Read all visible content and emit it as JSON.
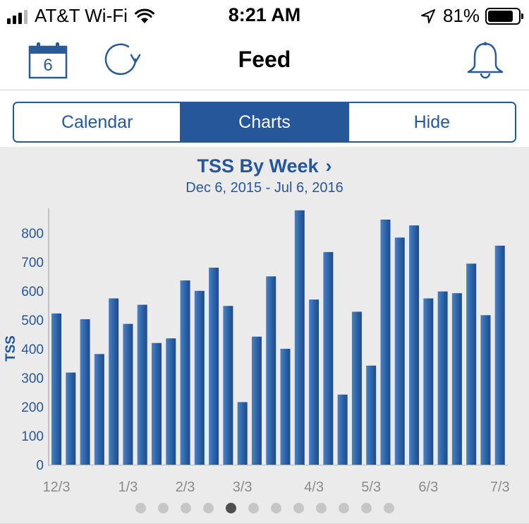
{
  "status_bar": {
    "carrier": "AT&T Wi-Fi",
    "time": "8:21 AM",
    "battery_percent": "81%",
    "battery_level": 0.81,
    "signal_bars": 4,
    "signal_bars_filled": 3
  },
  "nav": {
    "title": "Feed",
    "calendar_day": "6",
    "icons": [
      "calendar-icon",
      "refresh-icon",
      "bell-icon"
    ]
  },
  "segments": [
    {
      "label": "Calendar",
      "active": false
    },
    {
      "label": "Charts",
      "active": true
    },
    {
      "label": "Hide",
      "active": false
    }
  ],
  "chart_card": {
    "title": "TSS By Week",
    "title_arrow": "›",
    "subtitle": "Dec 6, 2015 - Jul 6, 2016"
  },
  "pager": {
    "count": 12,
    "active_index": 4
  },
  "colors": {
    "accent": "#26579a",
    "bar": "#2e64a8",
    "panel_bg": "#ebebeb"
  },
  "chart_data": {
    "type": "bar",
    "title": "TSS By Week",
    "subtitle": "Dec 6, 2015 - Jul 6, 2016",
    "ylabel": "TSS",
    "xlabel": "",
    "ylim": [
      0,
      880
    ],
    "yticks": [
      0,
      100,
      200,
      300,
      400,
      500,
      600,
      700,
      800
    ],
    "xtick_labels": [
      "12/3",
      "1/3",
      "2/3",
      "3/3",
      "4/3",
      "5/3",
      "6/3",
      "7/3"
    ],
    "xtick_bar_index": [
      0,
      5,
      9,
      13,
      18,
      22,
      26,
      31
    ],
    "grid": false,
    "series": [
      {
        "values": [
          522,
          318,
          502,
          382,
          574,
          486,
          552,
          420,
          436,
          636,
          600,
          680,
          548,
          216,
          442,
          650,
          400,
          878,
          570,
          734,
          242,
          528,
          342,
          846,
          784,
          826,
          574,
          598,
          592,
          694,
          516,
          756
        ]
      }
    ]
  }
}
